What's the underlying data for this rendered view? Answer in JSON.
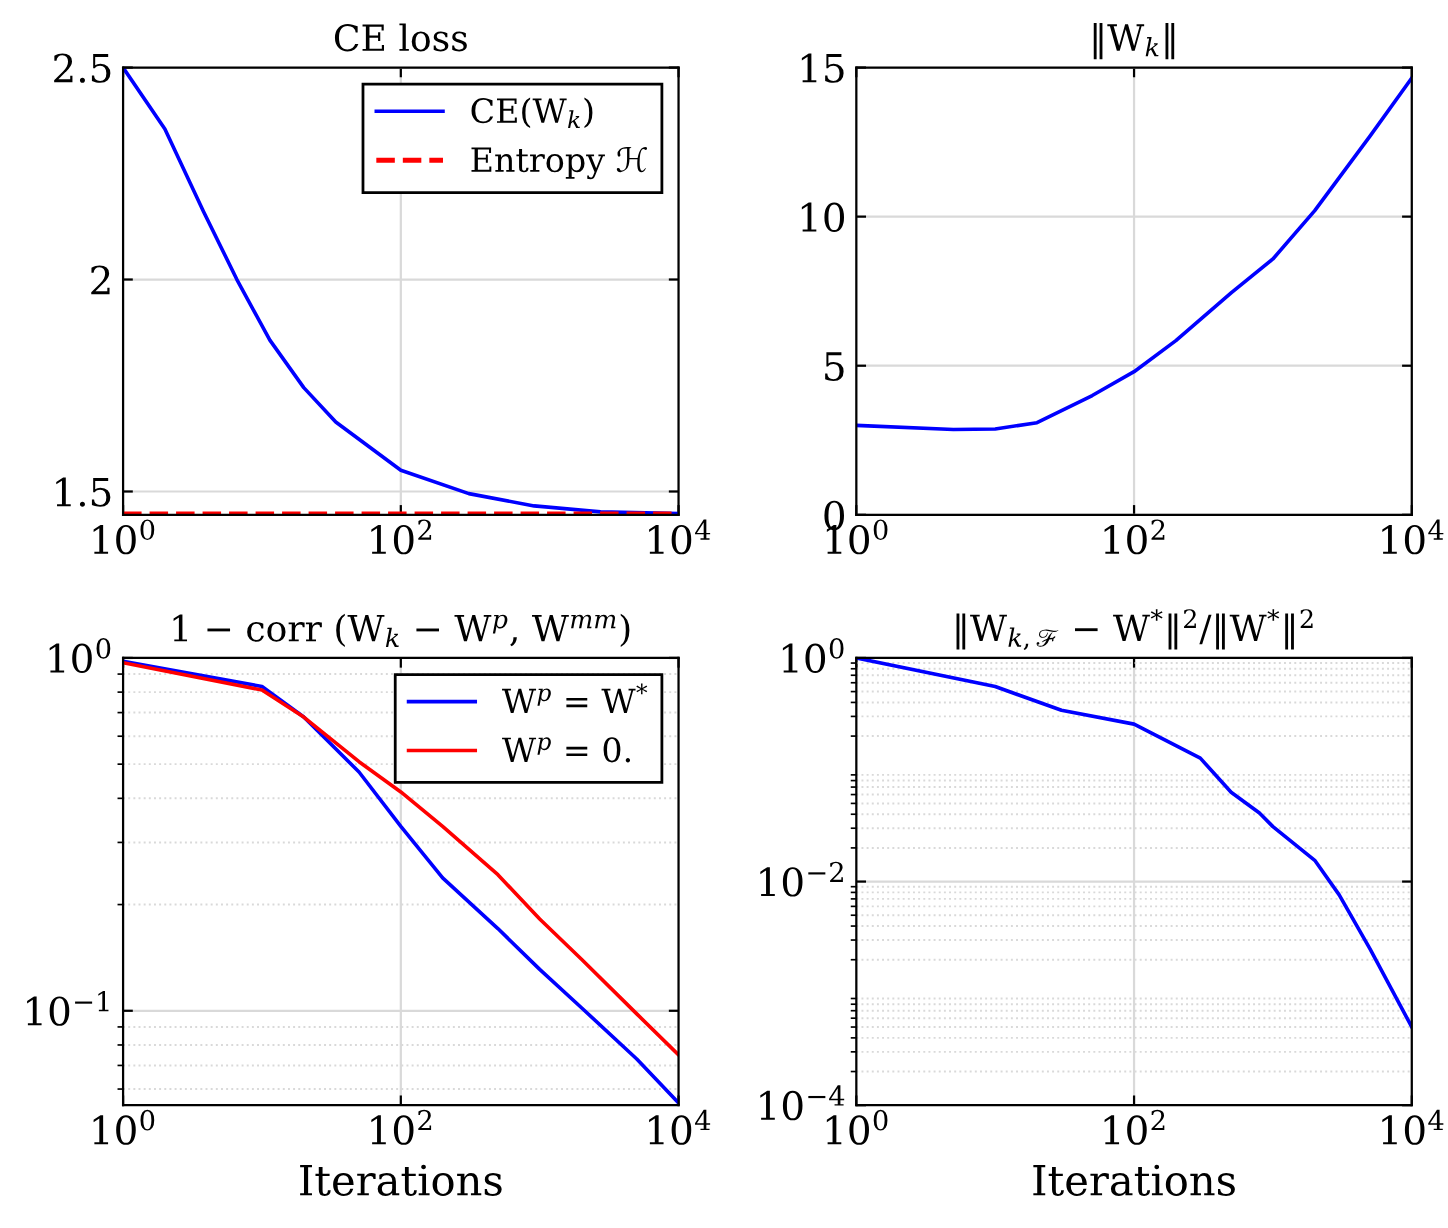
{
  "chart_data": [
    {
      "type": "line",
      "title": "CE loss",
      "log": "x",
      "grid": true,
      "legend": "top right",
      "xlim": [
        1,
        10000
      ],
      "xticks": [
        {
          "value": 1,
          "label": "10$^{0}$"
        },
        {
          "value": 100,
          "label": "10$^{2}$"
        },
        {
          "value": 10000,
          "label": "10$^{4}$"
        }
      ],
      "ylim": [
        1.445,
        2.5
      ],
      "yticks": [
        1.5,
        2,
        2.5
      ],
      "series": [
        {
          "name": "CE(W$_{k}$)",
          "color": "#0000ff",
          "line_style": "solid",
          "x": [
            1,
            2,
            3.8,
            6.6,
            11.4,
            20,
            34,
            100,
            309,
            912,
            2750,
            10000
          ],
          "values": [
            2.5,
            2.355,
            2.16,
            2.0,
            1.857,
            1.745,
            1.664,
            1.55,
            1.495,
            1.466,
            1.452,
            1.448
          ]
        },
        {
          "name": "Entropy ℋ",
          "color": "#ff0000",
          "line_style": "dashed",
          "x": [
            1,
            10000
          ],
          "values": [
            1.447,
            1.447
          ]
        }
      ]
    },
    {
      "type": "line",
      "title": "‖W$_{k}$‖",
      "log": "x",
      "grid": true,
      "xlim": [
        1,
        10000
      ],
      "xticks": [
        {
          "value": 1,
          "label": "10$^{0}$"
        },
        {
          "value": 100,
          "label": "10$^{2}$"
        },
        {
          "value": 10000,
          "label": "10$^{4}$"
        }
      ],
      "ylim": [
        0,
        15
      ],
      "yticks": [
        0,
        5,
        10,
        15
      ],
      "series": [
        {
          "color": "#0000ff",
          "line_style": "solid",
          "x": [
            1,
            5,
            10,
            20,
            50,
            100,
            200,
            500,
            1000,
            2000,
            5000,
            10000
          ],
          "values": [
            3.0,
            2.86,
            2.88,
            3.09,
            4.0,
            4.8,
            5.84,
            7.44,
            8.58,
            10.2,
            12.7,
            14.65
          ]
        }
      ]
    },
    {
      "type": "line",
      "title": "1 − corr (W$_{k}$ − W$^{p}$, W$^{mm}$)",
      "xlabel": "Iterations",
      "log": "xy",
      "grid": true,
      "legend": "top right",
      "xlim": [
        1,
        10000
      ],
      "xticks": [
        {
          "value": 1,
          "label": "10$^{0}$"
        },
        {
          "value": 100,
          "label": "10$^{2}$"
        },
        {
          "value": 10000,
          "label": "10$^{4}$"
        }
      ],
      "ylim": [
        0.054,
        1
      ],
      "yticks": [
        {
          "value": 0.1,
          "label": "10$^{−1}$"
        },
        {
          "value": 1,
          "label": "10$^{0}$"
        }
      ],
      "series": [
        {
          "name": "W$^{p}$ = W$^{*}$",
          "color": "#0000ff",
          "line_style": "solid",
          "x": [
            1,
            10,
            20,
            50,
            100,
            200,
            500,
            1000,
            2000,
            5000,
            10000
          ],
          "values": [
            0.978,
            0.83,
            0.68,
            0.475,
            0.333,
            0.238,
            0.171,
            0.131,
            0.102,
            0.073,
            0.0548
          ]
        },
        {
          "name": "W$^{p}$ = 0.",
          "color": "#ff0000",
          "line_style": "solid",
          "x": [
            1,
            10,
            20,
            50,
            100,
            200,
            500,
            1000,
            2000,
            5000,
            10000
          ],
          "values": [
            0.969,
            0.811,
            0.68,
            0.508,
            0.417,
            0.333,
            0.243,
            0.182,
            0.14,
            0.098,
            0.075
          ]
        }
      ]
    },
    {
      "type": "line",
      "title": "‖W$_{k,ℱ}$ − W$^{*}$‖$^{2}$/‖W$^{*}$‖$^{2}$",
      "xlabel": "Iterations",
      "log": "xy",
      "grid": true,
      "xlim": [
        1,
        10000
      ],
      "xticks": [
        {
          "value": 1,
          "label": "10$^{0}$"
        },
        {
          "value": 100,
          "label": "10$^{2}$"
        },
        {
          "value": 10000,
          "label": "10$^{4}$"
        }
      ],
      "ylim": [
        0.0001,
        1
      ],
      "yticks": [
        {
          "value": 0.0001,
          "label": "10$^{−4}$"
        },
        {
          "value": 0.01,
          "label": "10$^{−2}$"
        },
        {
          "value": 1,
          "label": "10$^{0}$"
        }
      ],
      "series": [
        {
          "color": "#0000ff",
          "line_style": "solid",
          "x": [
            1,
            10,
            30,
            100,
            300,
            500,
            800,
            1000,
            2000,
            3000,
            5000,
            10000
          ],
          "values": [
            1.0,
            0.555,
            0.34,
            0.256,
            0.127,
            0.063,
            0.041,
            0.031,
            0.0155,
            0.0076,
            0.0025,
            0.0005
          ]
        }
      ]
    }
  ]
}
